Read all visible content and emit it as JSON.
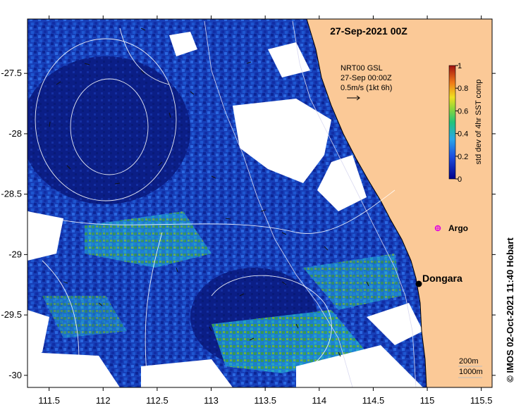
{
  "map": {
    "title": "27-Sep-2021 00Z",
    "x_ticks": [
      "111.5",
      "112",
      "112.5",
      "113",
      "113.5",
      "114",
      "114.5",
      "115",
      "115.5"
    ],
    "y_ticks": [
      "-27.5",
      "-28",
      "-28.5",
      "-29",
      "-29.5",
      "-30"
    ],
    "x_range": [
      111.3,
      115.6
    ],
    "y_range": [
      -27.05,
      -30.1
    ],
    "current_legend": {
      "line1": "NRT00 GSL",
      "line2": "27-Sep 00:00Z",
      "line3": "0.5m/s (1kt 6h)"
    },
    "colorbar": {
      "label": "std dev of 4hr SST comp",
      "ticks": [
        "1",
        "0.8",
        "0.6",
        "0.4",
        "0.2",
        "0"
      ]
    },
    "places": {
      "argo": "Argo",
      "dongara": "Dongara"
    },
    "depth_legend": {
      "d1": "200m",
      "d2": "1000m"
    },
    "credit": "© IMOS 02-Oct-2021 11:40 Hobart",
    "colors": {
      "land": "#fbc997",
      "ocean_dark": "#0a1f8c",
      "ocean_mid": "#1d4fd8",
      "ocean_light": "#2f8fe6",
      "high_var": "#3aa84a"
    }
  }
}
